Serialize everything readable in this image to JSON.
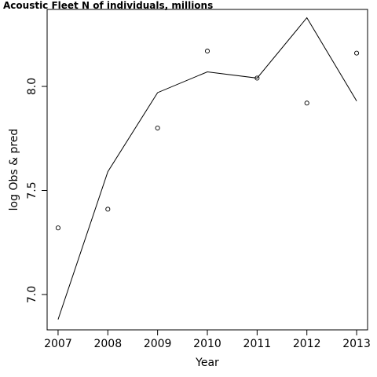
{
  "chart_data": {
    "type": "line",
    "title": "Acoustic Fleet   N of individuals, millions",
    "xlabel": "Year",
    "ylabel": "log Obs & pred",
    "x": [
      2007,
      2008,
      2009,
      2010,
      2011,
      2012,
      2013
    ],
    "xticks": [
      "2007",
      "2008",
      "2009",
      "2010",
      "2011",
      "2012",
      "2013"
    ],
    "yticks": [
      "7.0",
      "7.5",
      "8.0"
    ],
    "xlim": [
      2006.78,
      2013.22
    ],
    "ylim": [
      6.83,
      8.37
    ],
    "grid": false,
    "series": [
      {
        "style": "points",
        "marker": "open-circle",
        "values": [
          7.32,
          7.41,
          7.8,
          8.17,
          8.04,
          7.92,
          8.16
        ]
      },
      {
        "style": "line",
        "values": [
          6.88,
          7.59,
          7.97,
          8.07,
          8.04,
          8.33,
          7.93
        ]
      }
    ]
  }
}
